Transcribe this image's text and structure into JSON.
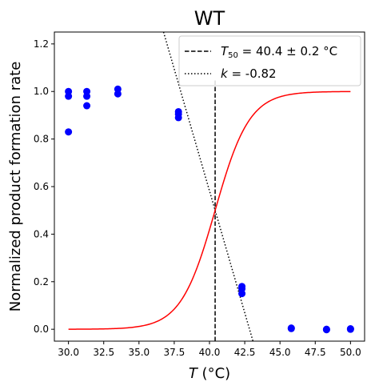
{
  "chart_data": {
    "type": "scatter",
    "title": "WT",
    "xlabel_italic": "T",
    "xlabel_unit": " (°C)",
    "ylabel": "Normalized product formation rate",
    "xlim": [
      29.0,
      51.0
    ],
    "ylim": [
      -0.05,
      1.25
    ],
    "xticks": [
      30.0,
      32.5,
      35.0,
      37.5,
      40.0,
      42.5,
      45.0,
      47.5,
      50.0
    ],
    "xtick_labels": [
      "30.0",
      "32.5",
      "35.0",
      "37.5",
      "40.0",
      "42.5",
      "45.0",
      "47.5",
      "50.0"
    ],
    "yticks": [
      0.0,
      0.2,
      0.4,
      0.6,
      0.8,
      1.0,
      1.2
    ],
    "ytick_labels": [
      "0.0",
      "0.2",
      "0.4",
      "0.6",
      "0.8",
      "1.0",
      "1.2"
    ],
    "points": [
      {
        "x": 30.0,
        "y": 1.0
      },
      {
        "x": 30.0,
        "y": 0.98
      },
      {
        "x": 30.0,
        "y": 0.83
      },
      {
        "x": 31.3,
        "y": 1.0
      },
      {
        "x": 31.3,
        "y": 0.98
      },
      {
        "x": 31.3,
        "y": 0.94
      },
      {
        "x": 33.5,
        "y": 1.01
      },
      {
        "x": 33.5,
        "y": 0.99
      },
      {
        "x": 37.8,
        "y": 0.915
      },
      {
        "x": 37.8,
        "y": 0.905
      },
      {
        "x": 37.8,
        "y": 0.89
      },
      {
        "x": 42.3,
        "y": 0.18
      },
      {
        "x": 42.3,
        "y": 0.17
      },
      {
        "x": 42.3,
        "y": 0.15
      },
      {
        "x": 45.8,
        "y": 0.005
      },
      {
        "x": 45.8,
        "y": 0.003
      },
      {
        "x": 48.3,
        "y": 0.0
      },
      {
        "x": 48.3,
        "y": -0.002
      },
      {
        "x": 50.0,
        "y": 0.0
      },
      {
        "x": 50.0,
        "y": 0.002
      }
    ],
    "fit": {
      "T50": 40.4,
      "k": -0.82,
      "y_top": 1.0,
      "x_range": [
        30.0,
        50.0
      ]
    },
    "t50_line": {
      "x": 40.4,
      "y_range": [
        -0.05,
        1.05
      ]
    },
    "tangent": {
      "x0": 40.4,
      "y0": 0.5,
      "slope": -0.205,
      "y_range": [
        -0.05,
        1.25
      ]
    },
    "legend": {
      "placement": "upper right",
      "entries": [
        {
          "style": "dashed",
          "sym": "T",
          "sub": "50",
          "text": " = 40.4 ± 0.2 °C"
        },
        {
          "style": "dotted",
          "sym": "k",
          "text": " = -0.82"
        }
      ]
    },
    "colors": {
      "points": "#0000ff",
      "fit": "#ff0000",
      "lines": "#000000"
    }
  }
}
